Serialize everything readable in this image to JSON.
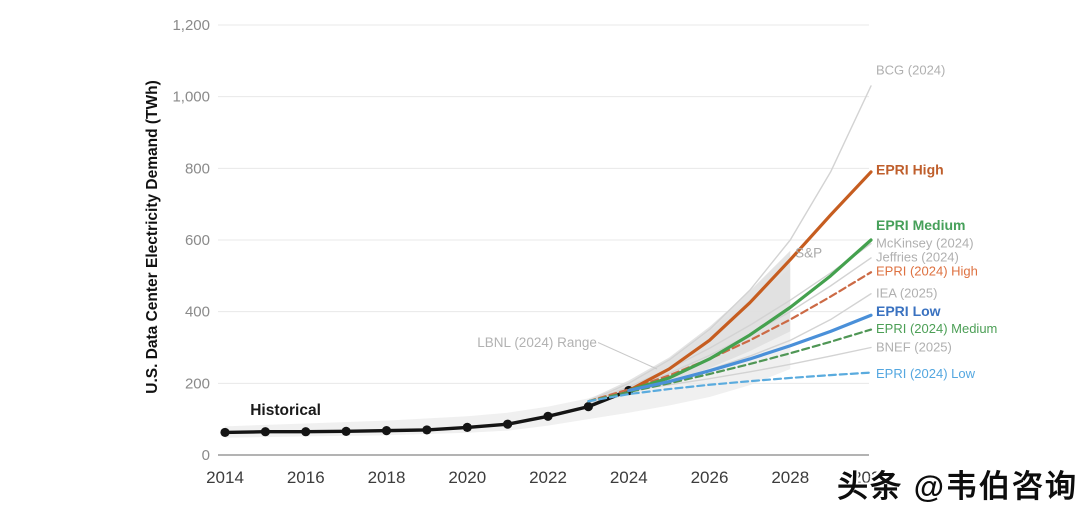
{
  "watermark": "头条 @韦伯咨询",
  "chart_data": {
    "type": "line",
    "title": "",
    "ylabel": "U.S. Data Center Electricity Demand (TWh)",
    "xlabel": "",
    "xlim": [
      2014,
      2030
    ],
    "ylim": [
      0,
      1200
    ],
    "grid": true,
    "xticks": [
      2014,
      2016,
      2018,
      2020,
      2022,
      2024,
      2026,
      2028,
      2030
    ],
    "xtick_labels": [
      "2014",
      "2016",
      "2018",
      "2020",
      "2022",
      "2024",
      "2026",
      "2028",
      "2030"
    ],
    "yticks": [
      0,
      200,
      400,
      600,
      800,
      1000,
      1200
    ],
    "ytick_labels": [
      "0",
      "200",
      "400",
      "600",
      "800",
      "1,000",
      "1,200"
    ],
    "bands": [
      {
        "name": "LBNL (2024) Range",
        "color": "#e9e9e9",
        "opacity": 0.7,
        "x": [
          2014,
          2016,
          2018,
          2020,
          2021,
          2022,
          2023,
          2024,
          2025,
          2026,
          2027,
          2028
        ],
        "lower": [
          48,
          52,
          55,
          62,
          68,
          82,
          100,
          118,
          138,
          162,
          195,
          240
        ],
        "upper": [
          80,
          88,
          96,
          108,
          118,
          135,
          158,
          198,
          262,
          345,
          435,
          520
        ]
      },
      {
        "name": "S&P",
        "color": "#dedede",
        "opacity": 0.85,
        "x": [
          2023,
          2024,
          2025,
          2026,
          2027,
          2028
        ],
        "lower": [
          140,
          168,
          202,
          242,
          290,
          345
        ],
        "upper": [
          155,
          208,
          272,
          358,
          458,
          570
        ]
      }
    ],
    "series": [
      {
        "name": "BCG (2024)",
        "color": "#d3d3d3",
        "style": "solid",
        "width": 1.4,
        "x": [
          2023,
          2024,
          2025,
          2026,
          2027,
          2028,
          2029,
          2030
        ],
        "values": [
          150,
          200,
          265,
          350,
          460,
          600,
          790,
          1030
        ]
      },
      {
        "name": "McKinsey (2024)",
        "color": "#d3d3d3",
        "style": "solid",
        "width": 1.4,
        "x": [
          2023,
          2024,
          2025,
          2026,
          2027,
          2028,
          2029,
          2030
        ],
        "values": [
          148,
          190,
          240,
          298,
          362,
          432,
          508,
          590
        ]
      },
      {
        "name": "Jeffries (2024)",
        "color": "#d3d3d3",
        "style": "solid",
        "width": 1.4,
        "x": [
          2023,
          2024,
          2025,
          2026,
          2027,
          2028,
          2029,
          2030
        ],
        "values": [
          146,
          183,
          228,
          278,
          336,
          400,
          472,
          550
        ]
      },
      {
        "name": "IEA (2025)",
        "color": "#d3d3d3",
        "style": "solid",
        "width": 1.4,
        "x": [
          2024,
          2025,
          2026,
          2027,
          2028,
          2029,
          2030
        ],
        "values": [
          180,
          205,
          238,
          276,
          320,
          378,
          450
        ]
      },
      {
        "name": "BNEF (2025)",
        "color": "#d3d3d3",
        "style": "solid",
        "width": 1.4,
        "x": [
          2024,
          2025,
          2026,
          2027,
          2028,
          2029,
          2030
        ],
        "values": [
          180,
          196,
          213,
          232,
          253,
          276,
          300
        ]
      },
      {
        "name": "Historical",
        "color": "#141414",
        "style": "solid",
        "width": 3.4,
        "markers": true,
        "marker_radius": 4.6,
        "x": [
          2014,
          2015,
          2016,
          2017,
          2018,
          2019,
          2020,
          2021,
          2022,
          2023,
          2024
        ],
        "values": [
          63,
          65,
          65,
          66,
          68,
          70,
          77,
          86,
          108,
          135,
          180
        ]
      },
      {
        "name": "EPRI (2024) High",
        "color": "#cc6a45",
        "style": "dashed",
        "width": 2.2,
        "x": [
          2023,
          2024,
          2025,
          2026,
          2027,
          2028,
          2029,
          2030
        ],
        "values": [
          150,
          183,
          222,
          268,
          320,
          378,
          442,
          510
        ]
      },
      {
        "name": "EPRI (2024) Medium",
        "color": "#4f9655",
        "style": "dashed",
        "width": 2.2,
        "x": [
          2023,
          2024,
          2025,
          2026,
          2027,
          2028,
          2029,
          2030
        ],
        "values": [
          150,
          176,
          200,
          226,
          254,
          284,
          316,
          350
        ]
      },
      {
        "name": "EPRI (2024) Low",
        "color": "#5aabde",
        "style": "dashed",
        "width": 2.2,
        "x": [
          2023,
          2024,
          2025,
          2026,
          2027,
          2028,
          2029,
          2030
        ],
        "values": [
          150,
          170,
          184,
          196,
          206,
          215,
          223,
          230
        ]
      },
      {
        "name": "EPRI High",
        "color": "#c65d20",
        "style": "solid",
        "width": 3.2,
        "x": [
          2024,
          2025,
          2026,
          2027,
          2028,
          2029,
          2030
        ],
        "values": [
          180,
          240,
          320,
          425,
          545,
          670,
          790
        ]
      },
      {
        "name": "EPRI Medium",
        "color": "#44a14e",
        "style": "solid",
        "width": 3.2,
        "x": [
          2024,
          2025,
          2026,
          2027,
          2028,
          2029,
          2030
        ],
        "values": [
          180,
          215,
          268,
          335,
          412,
          500,
          600
        ]
      },
      {
        "name": "EPRI Low",
        "color": "#4a90d9",
        "style": "solid",
        "width": 3.2,
        "x": [
          2024,
          2025,
          2026,
          2027,
          2028,
          2029,
          2030
        ],
        "values": [
          180,
          205,
          235,
          268,
          305,
          345,
          390
        ]
      }
    ],
    "annotations": [
      {
        "text": "Historical",
        "year": 2015.5,
        "twh": 126,
        "color": "#1a1a1a",
        "bold": true,
        "size": 15.5,
        "anchor": "middle"
      },
      {
        "text": "LBNL (2024) Range",
        "year": 2021.73,
        "twh": 315,
        "color": "#b2b2b2",
        "bold": false,
        "size": 13.5,
        "anchor": "middle",
        "leader": {
          "from": [
            2023.24,
            314
          ],
          "to": [
            2024.7,
            240
          ]
        }
      },
      {
        "text": "S&P",
        "year": 2028.12,
        "twh": 565,
        "color": "#a9a9a9",
        "bold": false,
        "size": 13.5,
        "anchor": "start"
      }
    ],
    "right_labels": [
      {
        "text": "BCG (2024)",
        "value": 1075,
        "color": "#b0b0b0",
        "bold": false
      },
      {
        "text": "EPRI High",
        "value": 795,
        "color": "#bf5e2b",
        "bold": true
      },
      {
        "text": "EPRI Medium",
        "value": 640,
        "color": "#46a05a",
        "bold": true
      },
      {
        "text": "McKinsey (2024)",
        "value": 592,
        "color": "#b0b0b0",
        "bold": false
      },
      {
        "text": "Jeffries (2024)",
        "value": 553,
        "color": "#b0b0b0",
        "bold": false
      },
      {
        "text": "EPRI (2024) High",
        "value": 513,
        "color": "#de7140",
        "bold": false
      },
      {
        "text": "IEA (2025)",
        "value": 452,
        "color": "#b0b0b0",
        "bold": false
      },
      {
        "text": "EPRI Low",
        "value": 400,
        "color": "#3a72c0",
        "bold": true
      },
      {
        "text": "EPRI (2024) Medium",
        "value": 353,
        "color": "#4c9f56",
        "bold": false
      },
      {
        "text": "BNEF (2025)",
        "value": 302,
        "color": "#b0b0b0",
        "bold": false
      },
      {
        "text": "EPRI (2024) Low",
        "value": 228,
        "color": "#54a7e0",
        "bold": false
      }
    ]
  }
}
